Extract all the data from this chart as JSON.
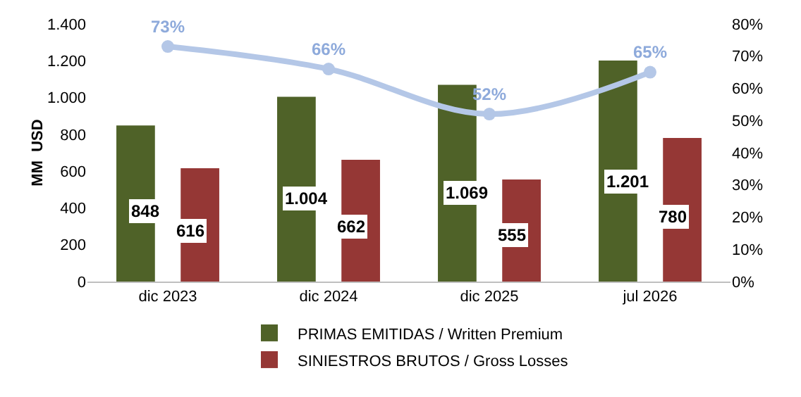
{
  "chart_data": {
    "type": "bar",
    "ylabel": "MM  USD",
    "categories": [
      "dic 2023",
      "dic 2024",
      "dic 2025",
      "jul 2026"
    ],
    "series": [
      {
        "name": "PRIMAS EMITIDAS / Written Premium",
        "color": "#4f6228",
        "values": [
          848,
          1004,
          1069,
          1201
        ],
        "value_labels": [
          "848",
          "1.004",
          "1.069",
          "1.201"
        ]
      },
      {
        "name": "SINIESTROS BRUTOS / Gross Losses",
        "color": "#953735",
        "values": [
          616,
          662,
          555,
          780
        ],
        "value_labels": [
          "616",
          "662",
          "555",
          "780"
        ]
      },
      {
        "type": "line",
        "axis": "y2",
        "color": "#b4c7e7",
        "values": [
          73,
          66,
          52,
          65
        ],
        "value_labels": [
          "73%",
          "66%",
          "52%",
          "65%"
        ]
      }
    ],
    "ylim": [
      0,
      1400
    ],
    "yticks": [
      0,
      200,
      400,
      600,
      800,
      {
        "value": 1000,
        "label": "1.000"
      },
      {
        "value": 1200,
        "label": "1.200"
      },
      {
        "value": 1400,
        "label": "1.400"
      }
    ],
    "y2lim": [
      0,
      80
    ],
    "y2ticks": [
      {
        "value": 0,
        "label": "0%"
      },
      {
        "value": 10,
        "label": "10%"
      },
      {
        "value": 20,
        "label": "20%"
      },
      {
        "value": 30,
        "label": "30%"
      },
      {
        "value": 40,
        "label": "40%"
      },
      {
        "value": 50,
        "label": "50%"
      },
      {
        "value": 60,
        "label": "60%"
      },
      {
        "value": 70,
        "label": "70%"
      },
      {
        "value": 80,
        "label": "80%"
      }
    ],
    "grid": false,
    "legend": "bottom",
    "marker": "circle"
  }
}
